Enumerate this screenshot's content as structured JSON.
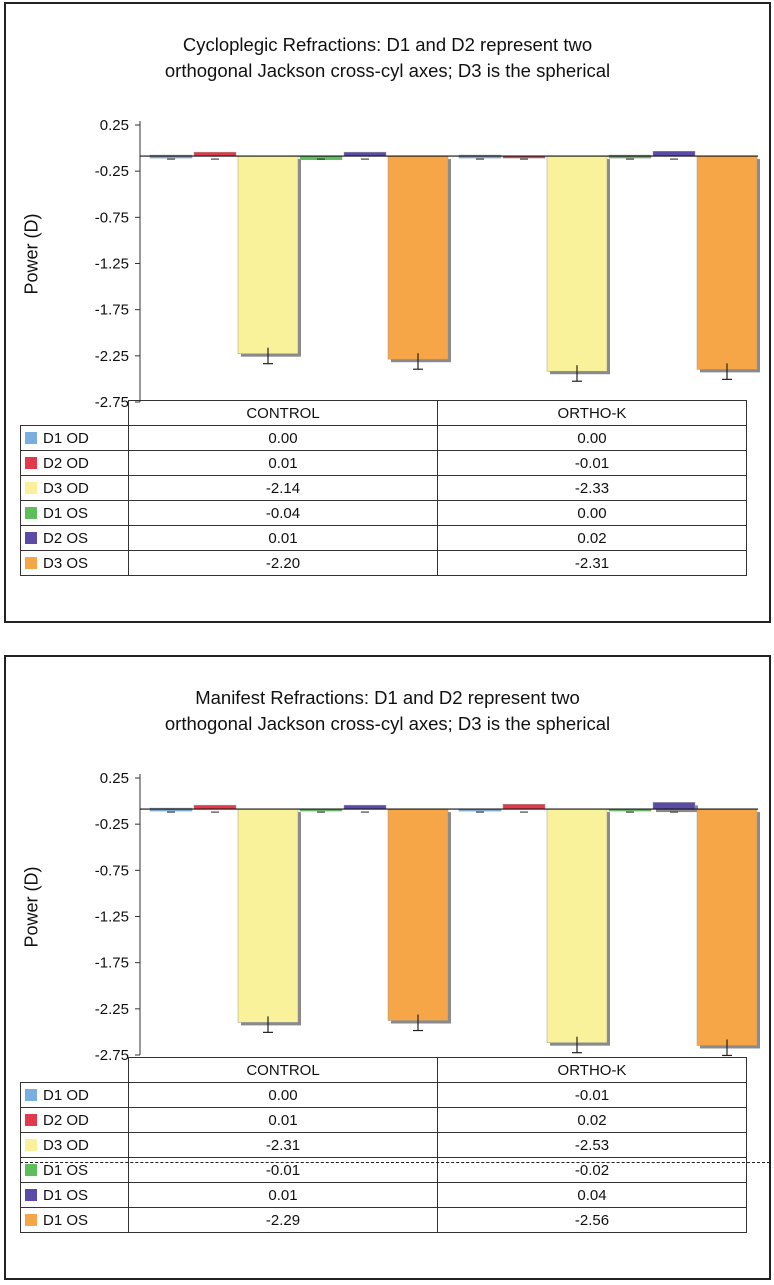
{
  "chart_data": [
    {
      "type": "bar",
      "title_lines": [
        "Cycloplegic Refractions: D1 and D2 represent two",
        "orthogonal Jackson cross-cyl axes; D3 is the spherical"
      ],
      "ylabel": "Power (D)",
      "ylim": [
        -2.75,
        0.25
      ],
      "yticks": [
        "0.25",
        "-0.25",
        "-0.75",
        "-1.25",
        "-1.75",
        "-2.25",
        "-2.75"
      ],
      "categories": [
        "CONTROL",
        "ORTHO-K"
      ],
      "series": [
        {
          "name": "D1 OD",
          "color": "#7aaee0",
          "values": [
            0.0,
            0.0
          ],
          "labels": [
            "0.00",
            "0.00"
          ]
        },
        {
          "name": "D2 OD",
          "color": "#e23a4a",
          "values": [
            0.01,
            -0.01
          ],
          "labels": [
            "0.01",
            "-0.01"
          ]
        },
        {
          "name": "D3 OD",
          "color": "#f9f29a",
          "values": [
            -2.14,
            -2.33
          ],
          "labels": [
            "-2.14",
            "-2.33"
          ]
        },
        {
          "name": "D1 OS",
          "color": "#5cbf5c",
          "values": [
            -0.04,
            0.0
          ],
          "labels": [
            "-0.04",
            "0.00"
          ]
        },
        {
          "name": "D2 OS",
          "color": "#5b4aa8",
          "values": [
            0.01,
            0.02
          ],
          "labels": [
            "0.01",
            "0.02"
          ]
        },
        {
          "name": "D3 OS",
          "color": "#f6a646",
          "values": [
            -2.2,
            -2.31
          ],
          "labels": [
            "-2.20",
            "-2.31"
          ]
        }
      ],
      "grid": false,
      "legend": "table-below"
    },
    {
      "type": "bar",
      "title_lines": [
        "Manifest Refractions: D1 and D2 represent two",
        "orthogonal Jackson cross-cyl axes; D3 is the spherical"
      ],
      "ylabel": "Power (D)",
      "ylim": [
        -2.75,
        0.25
      ],
      "yticks": [
        "0.25",
        "-0.25",
        "-0.75",
        "-1.25",
        "-1.75",
        "-2.25",
        "-2.75"
      ],
      "categories": [
        "CONTROL",
        "ORTHO-K"
      ],
      "series": [
        {
          "name": "D1 OD",
          "color": "#7aaee0",
          "values": [
            0.0,
            -0.01
          ],
          "labels": [
            "0.00",
            "-0.01"
          ]
        },
        {
          "name": "D2 OD",
          "color": "#e23a4a",
          "values": [
            0.01,
            0.02
          ],
          "labels": [
            "0.01",
            "0.02"
          ]
        },
        {
          "name": "D3 OD",
          "color": "#f9f29a",
          "values": [
            -2.31,
            -2.53
          ],
          "labels": [
            "-2.31",
            "-2.53"
          ]
        },
        {
          "name": "D1 OS",
          "color": "#5cbf5c",
          "values": [
            -0.01,
            -0.02
          ],
          "labels": [
            "-0.01",
            "-0.02"
          ]
        },
        {
          "name": "D1 OS",
          "color": "#5b4aa8",
          "values": [
            0.01,
            0.04
          ],
          "labels": [
            "0.01",
            "0.04"
          ]
        },
        {
          "name": "D1 OS",
          "color": "#f6a646",
          "values": [
            -2.29,
            -2.56
          ],
          "labels": [
            "-2.29",
            "-2.56"
          ]
        }
      ],
      "grid": false,
      "legend": "table-below"
    }
  ]
}
